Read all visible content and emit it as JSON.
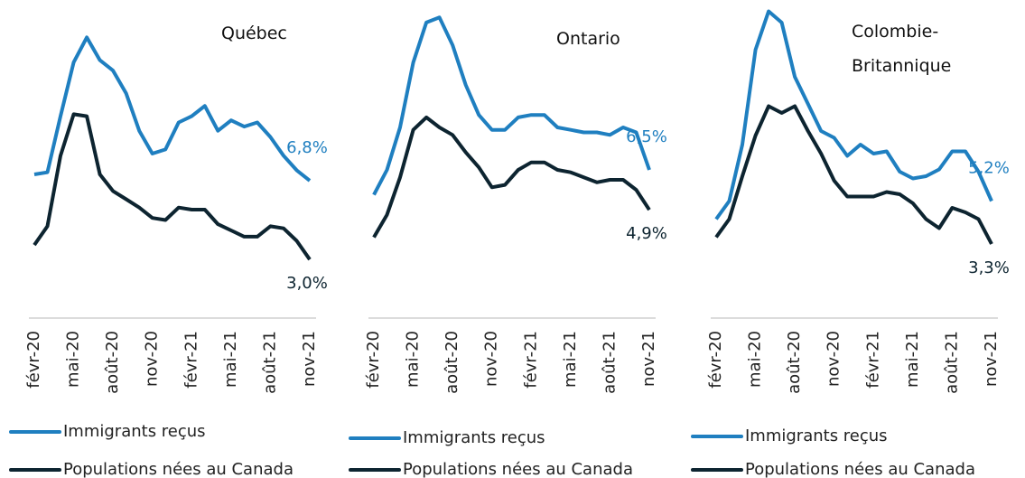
{
  "chart_data": [
    {
      "type": "line",
      "title": "Québec",
      "categories": [
        "févr-20",
        null,
        null,
        "mai-20",
        null,
        null,
        "août-20",
        null,
        null,
        "nov-20",
        null,
        null,
        "févr-21",
        null,
        null,
        "mai-21",
        null,
        null,
        "août-21",
        null,
        null,
        "nov-21"
      ],
      "ylim": [
        0.7,
        15.5
      ],
      "series": [
        {
          "name": "Immigrants reçus",
          "color": "#1f7fc0",
          "values": [
            7.1,
            7.2,
            9.9,
            12.5,
            13.7,
            12.6,
            12.1,
            11.0,
            9.2,
            8.1,
            8.3,
            9.6,
            9.9,
            10.4,
            9.2,
            9.7,
            9.4,
            9.6,
            8.9,
            8.0,
            7.3,
            6.8
          ],
          "value_labels": [
            null,
            null,
            null,
            null,
            null,
            null,
            null,
            null,
            null,
            null,
            null,
            null,
            null,
            null,
            null,
            null,
            null,
            null,
            null,
            null,
            null,
            "6,8%"
          ]
        },
        {
          "name": "Populations nées au Canada",
          "color": "#0d2430",
          "values": [
            3.7,
            4.6,
            8.0,
            10.0,
            9.9,
            7.1,
            6.3,
            5.9,
            5.5,
            5.0,
            4.9,
            5.5,
            5.4,
            5.4,
            4.7,
            4.4,
            4.1,
            4.1,
            4.6,
            4.5,
            3.9,
            3.0
          ],
          "value_labels": [
            null,
            null,
            null,
            null,
            null,
            null,
            null,
            null,
            null,
            null,
            null,
            null,
            null,
            null,
            null,
            null,
            null,
            null,
            null,
            null,
            null,
            "3,0%"
          ]
        }
      ]
    },
    {
      "type": "line",
      "title": "Ontario",
      "categories": [
        "févr-20",
        null,
        null,
        "mai-20",
        null,
        null,
        "août-20",
        null,
        null,
        "nov-20",
        null,
        null,
        "févr-21",
        null,
        null,
        "mai-21",
        null,
        null,
        "août-21",
        null,
        null,
        "nov-21"
      ],
      "ylim": [
        1.0,
        13.3
      ],
      "series": [
        {
          "name": "Immigrants reçus",
          "color": "#1f7fc0",
          "values": [
            5.5,
            6.5,
            8.2,
            10.8,
            12.4,
            12.6,
            11.5,
            9.9,
            8.7,
            8.1,
            8.1,
            8.6,
            8.7,
            8.7,
            8.2,
            8.1,
            8.0,
            8.0,
            7.9,
            8.2,
            8.0,
            6.5
          ],
          "value_labels": [
            null,
            null,
            null,
            null,
            null,
            null,
            null,
            null,
            null,
            null,
            null,
            null,
            null,
            null,
            null,
            null,
            null,
            null,
            null,
            null,
            null,
            "6,5%"
          ]
        },
        {
          "name": "Populations nées au Canada",
          "color": "#0d2430",
          "values": [
            3.8,
            4.7,
            6.2,
            8.1,
            8.6,
            8.2,
            7.9,
            7.2,
            6.6,
            5.8,
            5.9,
            6.5,
            6.8,
            6.8,
            6.5,
            6.4,
            6.2,
            6.0,
            6.1,
            6.1,
            5.7,
            4.9
          ],
          "value_labels": [
            null,
            null,
            null,
            null,
            null,
            null,
            null,
            null,
            null,
            null,
            null,
            null,
            null,
            null,
            null,
            null,
            null,
            null,
            null,
            null,
            null,
            "4,9%"
          ]
        }
      ]
    },
    {
      "type": "line",
      "title": "Colombie-Britannique",
      "categories": [
        "févr-20",
        null,
        null,
        "mai-20",
        null,
        null,
        "août-20",
        null,
        null,
        "nov-20",
        null,
        null,
        "févr-21",
        null,
        null,
        "mai-21",
        null,
        null,
        "août-21",
        null,
        null,
        "nov-21"
      ],
      "ylim": [
        0.5,
        14.1
      ],
      "series": [
        {
          "name": "Immigrants reçus",
          "color": "#1f7fc0",
          "values": [
            4.4,
            5.2,
            7.7,
            11.9,
            13.6,
            13.1,
            10.7,
            9.5,
            8.3,
            8.0,
            7.2,
            7.7,
            7.3,
            7.4,
            6.5,
            6.2,
            6.3,
            6.6,
            7.4,
            7.4,
            6.5,
            5.2
          ],
          "value_labels": [
            null,
            null,
            null,
            null,
            null,
            null,
            null,
            null,
            null,
            null,
            null,
            null,
            null,
            null,
            null,
            null,
            null,
            null,
            null,
            null,
            null,
            "5,2%"
          ]
        },
        {
          "name": "Populations nées au Canada",
          "color": "#0d2430",
          "values": [
            3.6,
            4.4,
            6.3,
            8.1,
            9.4,
            9.1,
            9.4,
            8.3,
            7.3,
            6.1,
            5.4,
            5.4,
            5.4,
            5.6,
            5.5,
            5.1,
            4.4,
            4.0,
            4.9,
            4.7,
            4.4,
            3.3
          ],
          "value_labels": [
            null,
            null,
            null,
            null,
            null,
            null,
            null,
            null,
            null,
            null,
            null,
            null,
            null,
            null,
            null,
            null,
            null,
            null,
            null,
            null,
            null,
            "3,3%"
          ]
        }
      ]
    }
  ]
}
